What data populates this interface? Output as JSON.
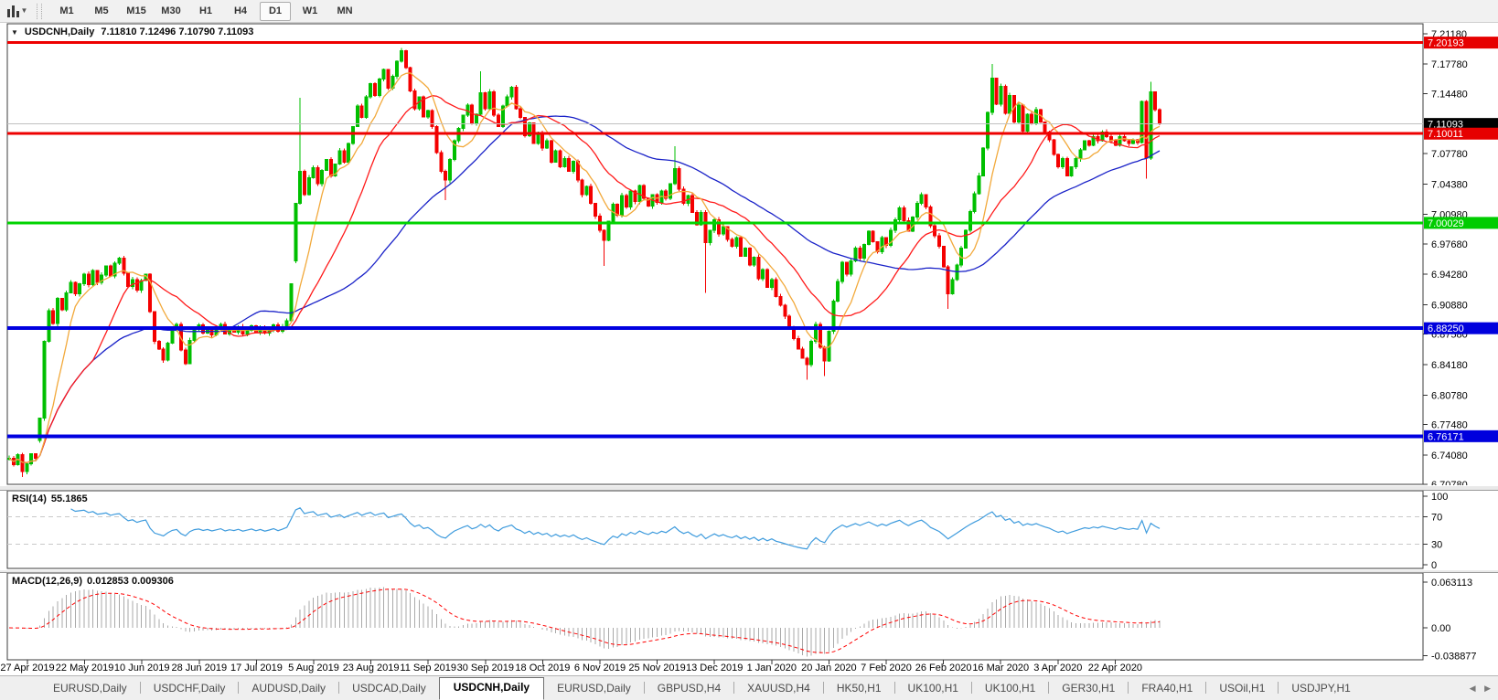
{
  "toolbar": {
    "periods": [
      "M1",
      "M5",
      "M15",
      "M30",
      "H1",
      "H4",
      "D1",
      "W1",
      "MN"
    ],
    "active_period": "D1"
  },
  "title": {
    "collapse_icon": "▼",
    "symbol": "USDCNH,Daily",
    "ohlc": "7.11810 7.12496 7.10790 7.11093"
  },
  "price_axis": {
    "ticks": [
      "7.21180",
      "7.17780",
      "7.14480",
      "7.07780",
      "7.04380",
      "7.00980",
      "6.97680",
      "6.94280",
      "6.90880",
      "6.87580",
      "6.84180",
      "6.80780",
      "6.77480",
      "6.74080",
      "6.70780"
    ],
    "badges": [
      {
        "text": "7.20193",
        "price": 7.20193,
        "bg": "#e60000",
        "fg": "#ffffff"
      },
      {
        "text": "7.11093",
        "price": 7.11093,
        "bg": "#000000",
        "fg": "#ffffff"
      },
      {
        "text": "7.10011",
        "price": 7.10011,
        "bg": "#e60000",
        "fg": "#ffffff"
      },
      {
        "text": "7.00029",
        "price": 7.00029,
        "bg": "#00cc00",
        "fg": "#ffffff"
      },
      {
        "text": "6.88250",
        "price": 6.8825,
        "bg": "#0000dd",
        "fg": "#ffffff"
      },
      {
        "text": "6.76171",
        "price": 6.76171,
        "bg": "#0000dd",
        "fg": "#ffffff"
      }
    ]
  },
  "date_axis": {
    "labels": [
      "27 Apr 2019",
      "22 May 2019",
      "10 Jun 2019",
      "28 Jun 2019",
      "17 Jul 2019",
      "5 Aug 2019",
      "23 Aug 2019",
      "11 Sep 2019",
      "30 Sep 2019",
      "18 Oct 2019",
      "6 Nov 2019",
      "25 Nov 2019",
      "13 Dec 2019",
      "1 Jan 2020",
      "20 Jan 2020",
      "7 Feb 2020",
      "26 Feb 2020",
      "16 Mar 2020",
      "3 Apr 2020",
      "22 Apr 2020"
    ]
  },
  "indicators": {
    "rsi": {
      "label": "RSI(14)",
      "value": "55.1865",
      "period": 14,
      "levels": [
        70,
        30
      ],
      "axis_ticks": [
        "100",
        "70",
        "30",
        "0"
      ],
      "line_color": "#3e9bdd",
      "level_color": "#c8c8c8"
    },
    "macd": {
      "label": "MACD(12,26,9)",
      "value": "0.012853 0.009306",
      "params": [
        12,
        26,
        9
      ],
      "axis_ticks": [
        {
          "text": "0.063113",
          "v": 0.063113
        },
        {
          "text": "0.00",
          "v": 0
        },
        {
          "text": "-0.038877",
          "v": -0.038877
        }
      ],
      "hist_color": "#a9a9a9",
      "signal_color": "#ff0000"
    }
  },
  "tabs": {
    "items": [
      "EURUSD,Daily",
      "USDCHF,Daily",
      "AUDUSD,Daily",
      "USDCAD,Daily",
      "USDCNH,Daily",
      "EURUSD,Daily",
      "GBPUSD,H4",
      "XAUUSD,H4",
      "HK50,H1",
      "UK100,H1",
      "UK100,H1",
      "GER30,H1",
      "FRA40,H1",
      "USOil,H1",
      "USDJPY,H1"
    ],
    "active_index": 4,
    "left_arrow": "◀",
    "right_arrow": "▶"
  },
  "chart_data": {
    "type": "candlestick",
    "symbol": "USDCNH",
    "timeframe": "Daily",
    "ohlc_display": {
      "open": "7.11810",
      "high": "7.12496",
      "low": "7.10790",
      "close": "7.11093"
    },
    "current_price": 7.11093,
    "price_range": {
      "top": 7.223,
      "bottom": 6.7079
    },
    "bull_color": "#00bf00",
    "bear_color": "#f40000",
    "closes": [
      6.737,
      6.73,
      6.741,
      6.722,
      6.731,
      6.742,
      6.737,
      6.782,
      6.868,
      6.902,
      6.888,
      6.916,
      6.903,
      6.922,
      6.934,
      6.921,
      6.932,
      6.943,
      6.931,
      6.947,
      6.934,
      6.942,
      6.952,
      6.941,
      6.955,
      6.961,
      6.944,
      6.929,
      6.937,
      6.925,
      6.936,
      6.943,
      6.901,
      6.868,
      6.859,
      6.847,
      6.866,
      6.881,
      6.887,
      6.858,
      6.843,
      6.869,
      6.882,
      6.886,
      6.877,
      6.883,
      6.875,
      6.881,
      6.887,
      6.876,
      6.882,
      6.878,
      6.884,
      6.876,
      6.88,
      6.885,
      6.878,
      6.883,
      6.877,
      6.881,
      6.886,
      6.879,
      6.884,
      6.891,
      6.932,
      7.022,
      7.058,
      7.032,
      7.051,
      7.062,
      7.044,
      7.059,
      7.071,
      7.053,
      7.066,
      7.081,
      7.068,
      7.089,
      7.108,
      7.131,
      7.118,
      7.141,
      7.156,
      7.143,
      7.161,
      7.172,
      7.151,
      7.164,
      7.181,
      7.193,
      7.174,
      7.148,
      7.128,
      7.141,
      7.119,
      7.126,
      7.108,
      7.079,
      7.058,
      7.048,
      7.071,
      7.092,
      7.106,
      7.121,
      7.132,
      7.112,
      7.122,
      7.146,
      7.128,
      7.147,
      7.121,
      7.108,
      7.131,
      7.141,
      7.152,
      7.128,
      7.118,
      7.098,
      7.112,
      7.089,
      7.101,
      7.084,
      7.092,
      7.068,
      7.081,
      7.063,
      7.072,
      7.058,
      7.069,
      7.048,
      7.032,
      7.041,
      7.022,
      7.008,
      6.992,
      6.981,
      7.002,
      7.021,
      7.009,
      7.031,
      7.018,
      7.036,
      7.024,
      7.042,
      7.028,
      7.019,
      7.032,
      7.023,
      7.036,
      7.028,
      7.044,
      7.061,
      7.038,
      7.022,
      7.031,
      7.012,
      6.998,
      7.012,
      6.978,
      6.992,
      7.004,
      6.988,
      6.996,
      6.982,
      6.974,
      6.984,
      6.963,
      6.972,
      6.953,
      6.962,
      6.938,
      6.948,
      6.928,
      6.937,
      6.918,
      6.908,
      6.896,
      6.884,
      6.871,
      6.859,
      6.849,
      6.842,
      6.868,
      6.887,
      6.861,
      6.846,
      6.879,
      6.913,
      6.935,
      6.956,
      6.943,
      6.958,
      6.972,
      6.961,
      6.976,
      6.991,
      6.979,
      6.968,
      6.984,
      6.975,
      6.992,
      7.004,
      7.017,
      7.003,
      6.991,
      7.007,
      7.022,
      7.032,
      7.018,
      6.997,
      6.986,
      6.974,
      6.951,
      6.921,
      6.937,
      6.953,
      6.972,
      6.992,
      7.013,
      7.033,
      7.053,
      7.084,
      7.124,
      7.162,
      7.133,
      7.153,
      7.123,
      7.143,
      7.113,
      7.132,
      7.103,
      7.122,
      7.112,
      7.127,
      7.113,
      7.102,
      7.093,
      7.077,
      7.063,
      7.072,
      7.053,
      7.063,
      7.072,
      7.082,
      7.092,
      7.087,
      7.097,
      7.092,
      7.102,
      7.097,
      7.092,
      7.087,
      7.097,
      7.092,
      7.089,
      7.093,
      7.09,
      7.136,
      7.073,
      7.147,
      7.127,
      7.111
    ],
    "gap_opens": {
      "7": 6.757,
      "65": 6.958
    },
    "wick_overrides": {
      "3": {
        "low": 6.716
      },
      "66": {
        "high": 7.14
      },
      "89": {
        "high": 7.196
      },
      "99": {
        "low": 7.026
      },
      "107": {
        "high": 7.17
      },
      "135": {
        "low": 6.952
      },
      "151": {
        "high": 7.086
      },
      "158": {
        "low": 6.922
      },
      "181": {
        "low": 6.825
      },
      "185": {
        "low": 6.829
      },
      "213": {
        "low": 6.904
      },
      "223": {
        "high": 7.178
      },
      "258": {
        "low": 7.05
      },
      "259": {
        "high": 7.158
      }
    },
    "hlines": [
      {
        "price": 7.20193,
        "color": "#ee0000",
        "width": 3
      },
      {
        "price": 7.11093,
        "color": "#c0c0c0",
        "width": 1
      },
      {
        "price": 7.10011,
        "color": "#ee0000",
        "width": 3
      },
      {
        "price": 7.00029,
        "color": "#00d300",
        "width": 3
      },
      {
        "price": 6.8825,
        "color": "#0000e0",
        "width": 4
      },
      {
        "price": 6.76171,
        "color": "#0000e0",
        "width": 4
      }
    ],
    "moving_averages": [
      {
        "period": 50,
        "color": "#1a22c8"
      },
      {
        "period": 20,
        "color": "#ff1a1a"
      },
      {
        "period": 8,
        "color": "#f2a93b"
      }
    ]
  }
}
